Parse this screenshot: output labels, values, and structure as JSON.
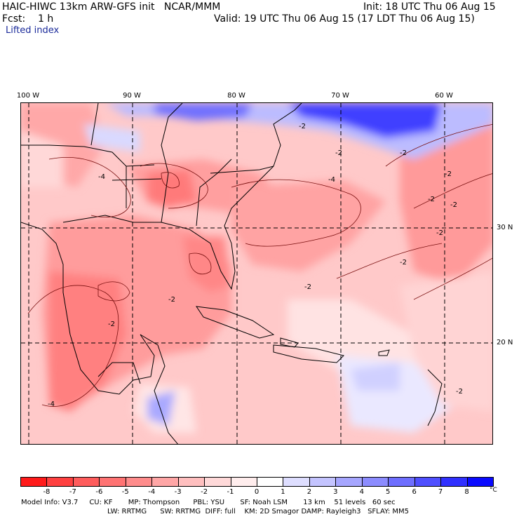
{
  "header": {
    "model_title": "HAIC-HIWC 13km ARW-GFS init   NCAR/MMM",
    "init_line": "Init: 18 UTC Thu 06 Aug 15",
    "forecast_line": "Fcst:    1 h",
    "valid_line": "Valid: 19 UTC Thu 06 Aug 15 (17 LDT Thu 06 Aug 15)",
    "field_name": "Lifted index"
  },
  "map": {
    "longitude_labels": [
      "100 W",
      "90 W",
      "80 W",
      "70 W",
      "60 W"
    ],
    "latitude_labels": [
      "30 N",
      "20 N"
    ],
    "contour_labels": [
      "-2",
      "-4",
      "-2",
      "-2",
      "-2",
      "-4",
      "-2",
      "-2",
      "-2",
      "-2",
      "-2",
      "-2",
      "-2",
      "-2",
      "-4"
    ]
  },
  "colorbar": {
    "labels": [
      "-8",
      "-7",
      "-6",
      "-5",
      "-4",
      "-3",
      "-2",
      "-1",
      "0",
      "1",
      "2",
      "3",
      "4",
      "5",
      "6",
      "7",
      "8"
    ],
    "unit": "°C",
    "colors": [
      "#ff1a1a",
      "#ff4040",
      "#ff5c5c",
      "#ff7373",
      "#ff8c8c",
      "#ffa6a6",
      "#ffbfbf",
      "#ffd9d9",
      "#ffeded",
      "#ffffff",
      "#dedeff",
      "#c4c4ff",
      "#a6a6ff",
      "#8c8cff",
      "#6e6eff",
      "#4f4fff",
      "#3030ff",
      "#0a0aff"
    ]
  },
  "footer": {
    "line1": "Model Info: V3.7     CU: KF       MP: Thompson      PBL: YSU       SF: Noah LSM       13 km    51 levels   60 sec",
    "line2": "LW: RRTMG      SW: RRTMG  DIFF: full    KM: 2D Smagor DAMP: Rayleigh3   SFLAY: MM5"
  }
}
